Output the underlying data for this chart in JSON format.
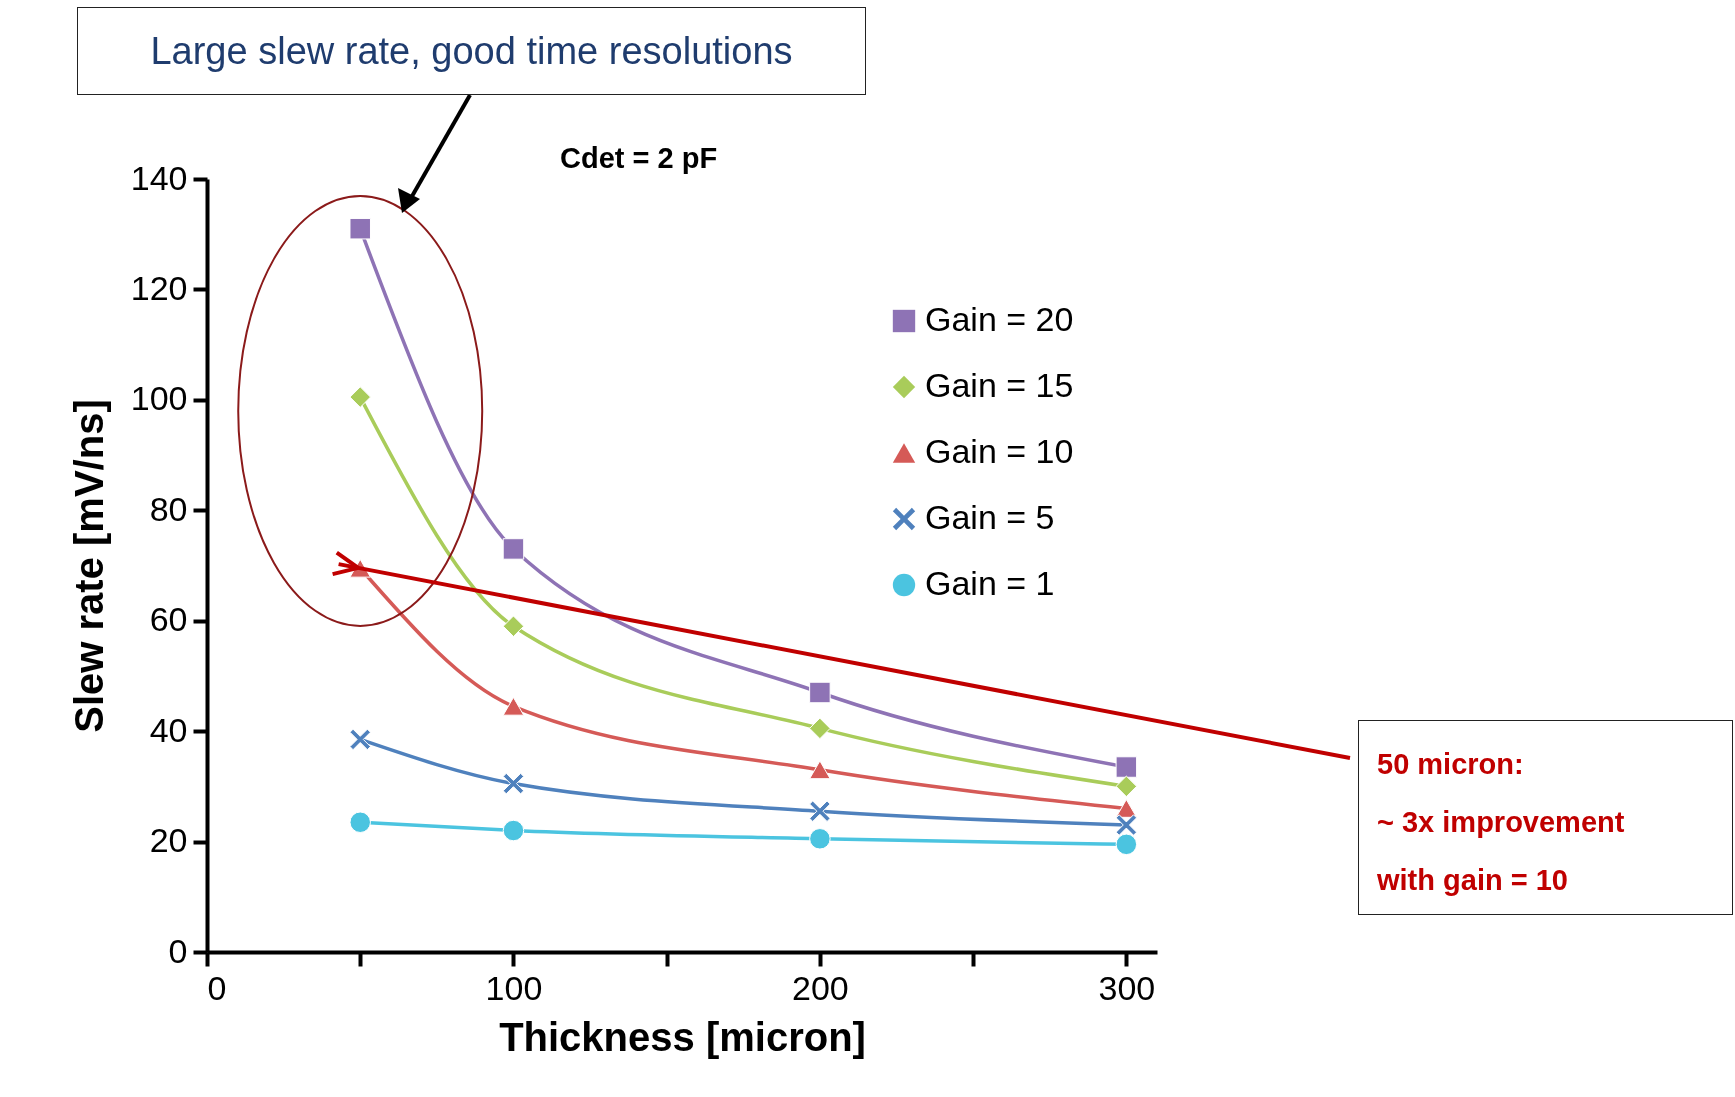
{
  "chart_data": {
    "type": "line",
    "xlabel": "Thickness [micron]",
    "ylabel": "Slew rate [mV/ns]",
    "x": [
      50,
      100,
      200,
      300
    ],
    "series": [
      {
        "name": "Gain = 20",
        "color": "#8e73b5",
        "marker": "square",
        "values": [
          131,
          73,
          47,
          33.5
        ]
      },
      {
        "name": "Gain = 15",
        "color": "#a9cc5a",
        "marker": "diamond",
        "values": [
          100.5,
          59,
          40.5,
          30
        ]
      },
      {
        "name": "Gain = 10",
        "color": "#d55a57",
        "marker": "triangle",
        "values": [
          69.5,
          44.5,
          33,
          26
        ]
      },
      {
        "name": "Gain = 5",
        "color": "#4f81bd",
        "marker": "cross",
        "values": [
          38.5,
          30.5,
          25.5,
          23
        ]
      },
      {
        "name": "Gain = 1",
        "color": "#4bc4e0",
        "marker": "circle",
        "values": [
          23.5,
          22,
          20.5,
          19.5
        ]
      }
    ],
    "xlim": [
      0,
      310
    ],
    "xticks": [
      0,
      {
        "value": 50,
        "label": null
      },
      100,
      {
        "value": 150,
        "label": null
      },
      200,
      {
        "value": 250,
        "label": null
      },
      300
    ],
    "ylim": [
      0,
      140
    ],
    "yticks": [
      0,
      20,
      40,
      60,
      80,
      100,
      120,
      140
    ],
    "grid": false,
    "legend": "right",
    "annotations": [
      "Large slew rate, good time resolutions",
      "Cdet = 2 pF",
      "50 micron:\n~ 3x improvement\nwith gain = 10"
    ]
  }
}
